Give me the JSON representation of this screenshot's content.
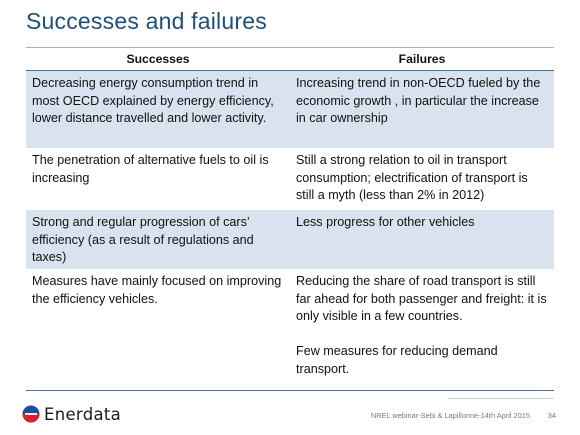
{
  "slide": {
    "title": "Successes and failures",
    "table": {
      "headers": [
        "Successes",
        "Failures"
      ],
      "rows": [
        {
          "success": "Decreasing energy consumption trend in most OECD explained by energy efficiency, lower distance travelled and lower activity.",
          "failure": "Increasing trend in non-OECD fueled by the economic growth , in particular the increase in car ownership"
        },
        {
          "success": "The penetration of alternative fuels to oil is increasing",
          "failure": "Still a strong  relation to oil in transport consumption; electrification of transport is still a myth (less than 2% in 2012)"
        },
        {
          "success": "Strong and regular progression of cars’ efficiency (as a result of regulations and taxes)",
          "failure": "Less progress for other vehicles"
        },
        {
          "success": "Measures have mainly focused on improving the efficiency vehicles.",
          "failure": "Reducing the share of road transport is still far ahead for both passenger and freight: it is only visible in a few countries.\n\nFew measures for reducing demand transport."
        }
      ]
    },
    "colors": {
      "title": "#1f4e79",
      "band": "#d9e2ef",
      "rule": "#4a6ea0",
      "logo_blue": "#1d4f9c",
      "logo_red": "#d8232a"
    }
  },
  "footer": {
    "logo_text": "Enerdata",
    "logo_icon": "enerdata-logo-icon",
    "note": "NREL webinar-Sebi  & Lapillonne-14th April 2015",
    "page_number": "34"
  }
}
